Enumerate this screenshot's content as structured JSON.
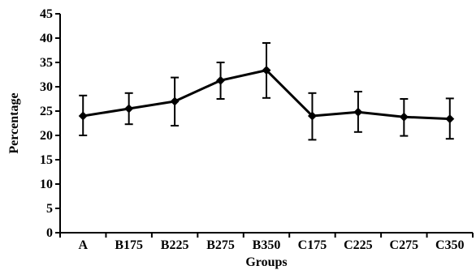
{
  "chart_data": {
    "type": "line",
    "title": "",
    "xlabel": "Groups",
    "ylabel": "Percentage",
    "categories": [
      "A",
      "B175",
      "B225",
      "B275",
      "B350",
      "C175",
      "C225",
      "C275",
      "C350"
    ],
    "values": [
      24,
      25.5,
      27,
      31.3,
      33.4,
      24,
      24.8,
      23.8,
      23.4
    ],
    "error_low": [
      20,
      22.3,
      22,
      27.5,
      27.7,
      19.1,
      20.7,
      19.9,
      19.3
    ],
    "error_high": [
      28.2,
      28.7,
      31.9,
      35,
      39,
      28.7,
      29,
      27.5,
      27.6
    ],
    "ylim": [
      0,
      45
    ],
    "yticks": [
      0,
      5,
      10,
      15,
      20,
      25,
      30,
      35,
      40,
      45
    ],
    "grid": false,
    "line_color": "#000000",
    "marker": "diamond"
  }
}
